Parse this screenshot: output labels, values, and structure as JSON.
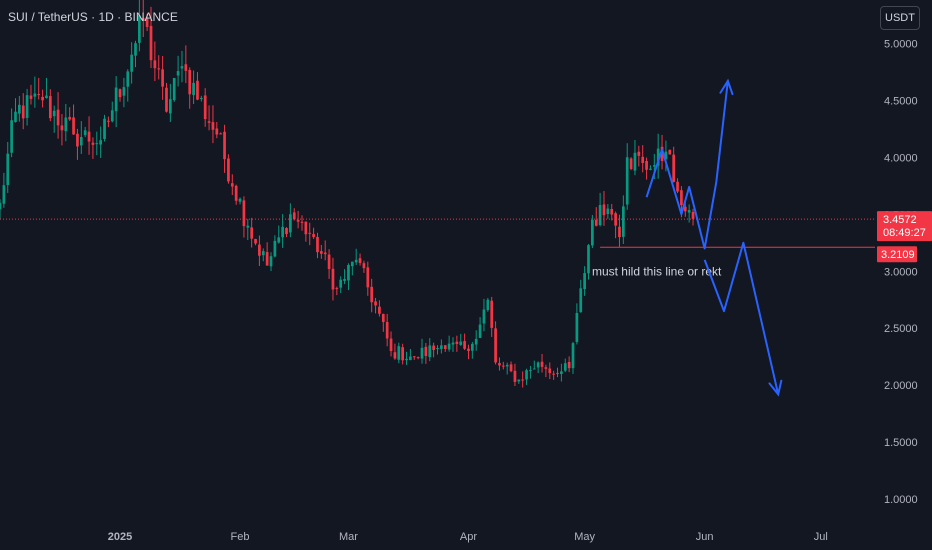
{
  "header": {
    "symbol_line": "SUI / TetherUS · 1D · BINANCE",
    "unit_button": "USDT"
  },
  "colors": {
    "background": "#131722",
    "up": "#089981",
    "down": "#F23645",
    "drawing": "#2962FF",
    "support_line": "#F23645",
    "axis_text": "#B2B5BE"
  },
  "chart_data": {
    "type": "candlestick",
    "symbol": "SUI / TetherUS",
    "timeframe": "1D",
    "exchange": "BINANCE",
    "y_axis": {
      "ticks": [
        "5.0000",
        "4.5000",
        "4.0000",
        "3.5000",
        "3.0000",
        "2.5000",
        "2.0000",
        "1.5000",
        "1.0000"
      ],
      "tick_values": [
        5.0,
        4.5,
        4.0,
        3.5,
        3.0,
        2.5,
        2.0,
        1.5,
        1.0
      ],
      "range": [
        0.8,
        5.38
      ]
    },
    "x_axis": {
      "range": [
        "2024-12-01",
        "2025-07-15"
      ],
      "labels": [
        {
          "date": "2025-01-01",
          "text": "2025",
          "bold": true
        },
        {
          "date": "2025-02-01",
          "text": "Feb"
        },
        {
          "date": "2025-03-01",
          "text": "Mar"
        },
        {
          "date": "2025-04-01",
          "text": "Apr"
        },
        {
          "date": "2025-05-01",
          "text": "May"
        },
        {
          "date": "2025-06-01",
          "text": "Jun"
        },
        {
          "date": "2025-07-01",
          "text": "Jul"
        }
      ]
    },
    "price_key_points": [
      {
        "date": "2024-12-01",
        "close": 3.6
      },
      {
        "date": "2024-12-05",
        "close": 4.4
      },
      {
        "date": "2024-12-12",
        "close": 4.5
      },
      {
        "date": "2024-12-20",
        "close": 4.2
      },
      {
        "date": "2024-12-27",
        "close": 4.15
      },
      {
        "date": "2025-01-04",
        "close": 4.9
      },
      {
        "date": "2025-01-07",
        "close": 5.2
      },
      {
        "date": "2025-01-13",
        "close": 4.4
      },
      {
        "date": "2025-01-17",
        "close": 4.8
      },
      {
        "date": "2025-01-26",
        "close": 4.2
      },
      {
        "date": "2025-02-03",
        "close": 3.4
      },
      {
        "date": "2025-02-08",
        "close": 3.05
      },
      {
        "date": "2025-02-14",
        "close": 3.5
      },
      {
        "date": "2025-02-20",
        "close": 3.3
      },
      {
        "date": "2025-02-26",
        "close": 2.85
      },
      {
        "date": "2025-03-03",
        "close": 3.1
      },
      {
        "date": "2025-03-08",
        "close": 2.7
      },
      {
        "date": "2025-03-12",
        "close": 2.3
      },
      {
        "date": "2025-03-18",
        "close": 2.25
      },
      {
        "date": "2025-03-25",
        "close": 2.35
      },
      {
        "date": "2025-04-01",
        "close": 2.3
      },
      {
        "date": "2025-04-06",
        "close": 2.75
      },
      {
        "date": "2025-04-08",
        "close": 2.2
      },
      {
        "date": "2025-04-14",
        "close": 2.05
      },
      {
        "date": "2025-04-19",
        "close": 2.2
      },
      {
        "date": "2025-04-24",
        "close": 2.1
      },
      {
        "date": "2025-04-27",
        "close": 2.15
      },
      {
        "date": "2025-05-03",
        "close": 3.45
      },
      {
        "date": "2025-05-07",
        "close": 3.55
      },
      {
        "date": "2025-05-09",
        "close": 3.4
      },
      {
        "date": "2025-05-10",
        "close": 3.3
      },
      {
        "date": "2025-05-12",
        "close": 4.0
      },
      {
        "date": "2025-05-16",
        "close": 3.95
      },
      {
        "date": "2025-05-18",
        "close": 3.9
      },
      {
        "date": "2025-05-22",
        "close": 4.05
      },
      {
        "date": "2025-05-25",
        "close": 3.7
      },
      {
        "date": "2025-05-29",
        "close": 3.46
      }
    ],
    "current_price": {
      "value": 3.4572,
      "label": "3.4572",
      "countdown": "08:49:27"
    },
    "support_level": {
      "value": 3.2109,
      "label": "3.2109",
      "start_date": "2025-05-05"
    },
    "annotation": {
      "text": "must hild this line or  rekt",
      "date": "2025-05-06",
      "price": 3.0
    },
    "drawings": [
      {
        "type": "polyline",
        "points": [
          {
            "date": "2025-05-17",
            "price": 3.65
          },
          {
            "date": "2025-05-21",
            "price": 4.07
          },
          {
            "date": "2025-05-26",
            "price": 3.5
          },
          {
            "date": "2025-05-28",
            "price": 3.74
          },
          {
            "date": "2025-06-01",
            "price": 3.2
          },
          {
            "date": "2025-06-04",
            "price": 3.78
          },
          {
            "date": "2025-06-07",
            "price": 4.67
          }
        ],
        "arrow_end": true
      },
      {
        "type": "polyline",
        "points": [
          {
            "date": "2025-06-01",
            "price": 3.1
          },
          {
            "date": "2025-06-06",
            "price": 2.65
          },
          {
            "date": "2025-06-11",
            "price": 3.25
          },
          {
            "date": "2025-06-20",
            "price": 1.92
          }
        ],
        "arrow_end": true
      }
    ]
  }
}
